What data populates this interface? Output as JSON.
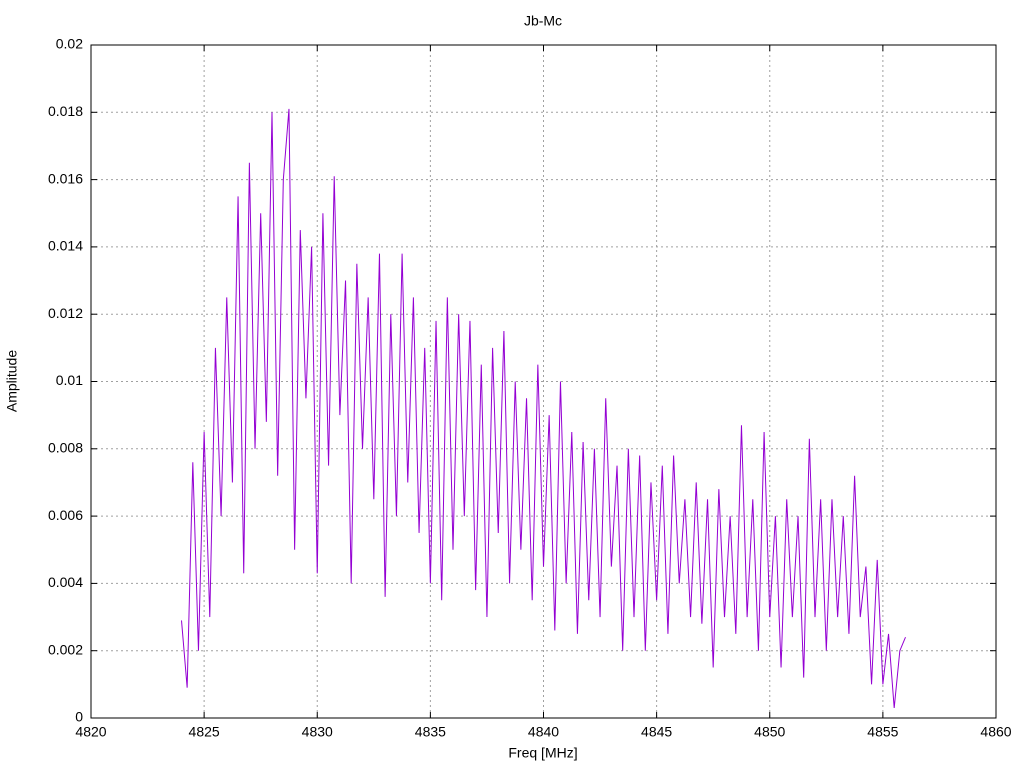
{
  "chart_data": {
    "type": "line",
    "title": "Jb-Mc",
    "xlabel": "Freq [MHz]",
    "ylabel": "Amplitude",
    "xlim": [
      4820,
      4860
    ],
    "xticks": [
      4820,
      4825,
      4830,
      4835,
      4840,
      4845,
      4850,
      4855,
      4860
    ],
    "ylim": [
      0,
      0.02
    ],
    "yticks": [
      0,
      0.002,
      0.004,
      0.006,
      0.008,
      0.01,
      0.012,
      0.014,
      0.016,
      0.018,
      0.02
    ],
    "grid": true,
    "x": [
      4824,
      4824.25,
      4824.5,
      4824.75,
      4825,
      4825.25,
      4825.5,
      4825.75,
      4826,
      4826.25,
      4826.5,
      4826.75,
      4827,
      4827.25,
      4827.5,
      4827.75,
      4828,
      4828.25,
      4828.5,
      4828.75,
      4829,
      4829.25,
      4829.5,
      4829.75,
      4830,
      4830.25,
      4830.5,
      4830.75,
      4831,
      4831.25,
      4831.5,
      4831.75,
      4832,
      4832.25,
      4832.5,
      4832.75,
      4833,
      4833.25,
      4833.5,
      4833.75,
      4834,
      4834.25,
      4834.5,
      4834.75,
      4835,
      4835.25,
      4835.5,
      4835.75,
      4836,
      4836.25,
      4836.5,
      4836.75,
      4837,
      4837.25,
      4837.5,
      4837.75,
      4838,
      4838.25,
      4838.5,
      4838.75,
      4839,
      4839.25,
      4839.5,
      4839.75,
      4840,
      4840.25,
      4840.5,
      4840.75,
      4841,
      4841.25,
      4841.5,
      4841.75,
      4842,
      4842.25,
      4842.5,
      4842.75,
      4843,
      4843.25,
      4843.5,
      4843.75,
      4844,
      4844.25,
      4844.5,
      4844.75,
      4845,
      4845.25,
      4845.5,
      4845.75,
      4846,
      4846.25,
      4846.5,
      4846.75,
      4847,
      4847.25,
      4847.5,
      4847.75,
      4848,
      4848.25,
      4848.5,
      4848.75,
      4849,
      4849.25,
      4849.5,
      4849.75,
      4850,
      4850.25,
      4850.5,
      4850.75,
      4851,
      4851.25,
      4851.5,
      4851.75,
      4852,
      4852.25,
      4852.5,
      4852.75,
      4853,
      4853.25,
      4853.5,
      4853.75,
      4854,
      4854.25,
      4854.5,
      4854.75,
      4855,
      4855.25,
      4855.5,
      4855.75,
      4856
    ],
    "series": [
      {
        "color": "#9400d3",
        "values": [
          0.0029,
          0.0009,
          0.0076,
          0.002,
          0.0085,
          0.003,
          0.011,
          0.006,
          0.0125,
          0.007,
          0.0155,
          0.0043,
          0.0165,
          0.008,
          0.015,
          0.0088,
          0.018,
          0.0072,
          0.016,
          0.0181,
          0.005,
          0.0145,
          0.0095,
          0.014,
          0.0043,
          0.015,
          0.0075,
          0.0161,
          0.009,
          0.013,
          0.004,
          0.0135,
          0.008,
          0.0125,
          0.0065,
          0.0138,
          0.0036,
          0.012,
          0.006,
          0.0138,
          0.007,
          0.0125,
          0.0055,
          0.011,
          0.004,
          0.0118,
          0.0035,
          0.0125,
          0.005,
          0.012,
          0.006,
          0.0118,
          0.0038,
          0.0105,
          0.003,
          0.011,
          0.0055,
          0.0115,
          0.004,
          0.01,
          0.005,
          0.0095,
          0.0035,
          0.0105,
          0.0045,
          0.009,
          0.0026,
          0.01,
          0.004,
          0.0085,
          0.0025,
          0.0082,
          0.0035,
          0.008,
          0.003,
          0.0095,
          0.0045,
          0.0075,
          0.002,
          0.008,
          0.003,
          0.0078,
          0.002,
          0.007,
          0.0035,
          0.0075,
          0.0025,
          0.0078,
          0.004,
          0.0065,
          0.003,
          0.007,
          0.0028,
          0.0065,
          0.0015,
          0.0068,
          0.003,
          0.006,
          0.0025,
          0.0087,
          0.003,
          0.0065,
          0.002,
          0.0085,
          0.003,
          0.006,
          0.0015,
          0.0065,
          0.003,
          0.006,
          0.0012,
          0.0083,
          0.003,
          0.0065,
          0.002,
          0.0065,
          0.003,
          0.006,
          0.0025,
          0.0072,
          0.003,
          0.0045,
          0.001,
          0.0047,
          0.001,
          0.0025,
          0.0003,
          0.002,
          0.0024
        ]
      }
    ]
  }
}
